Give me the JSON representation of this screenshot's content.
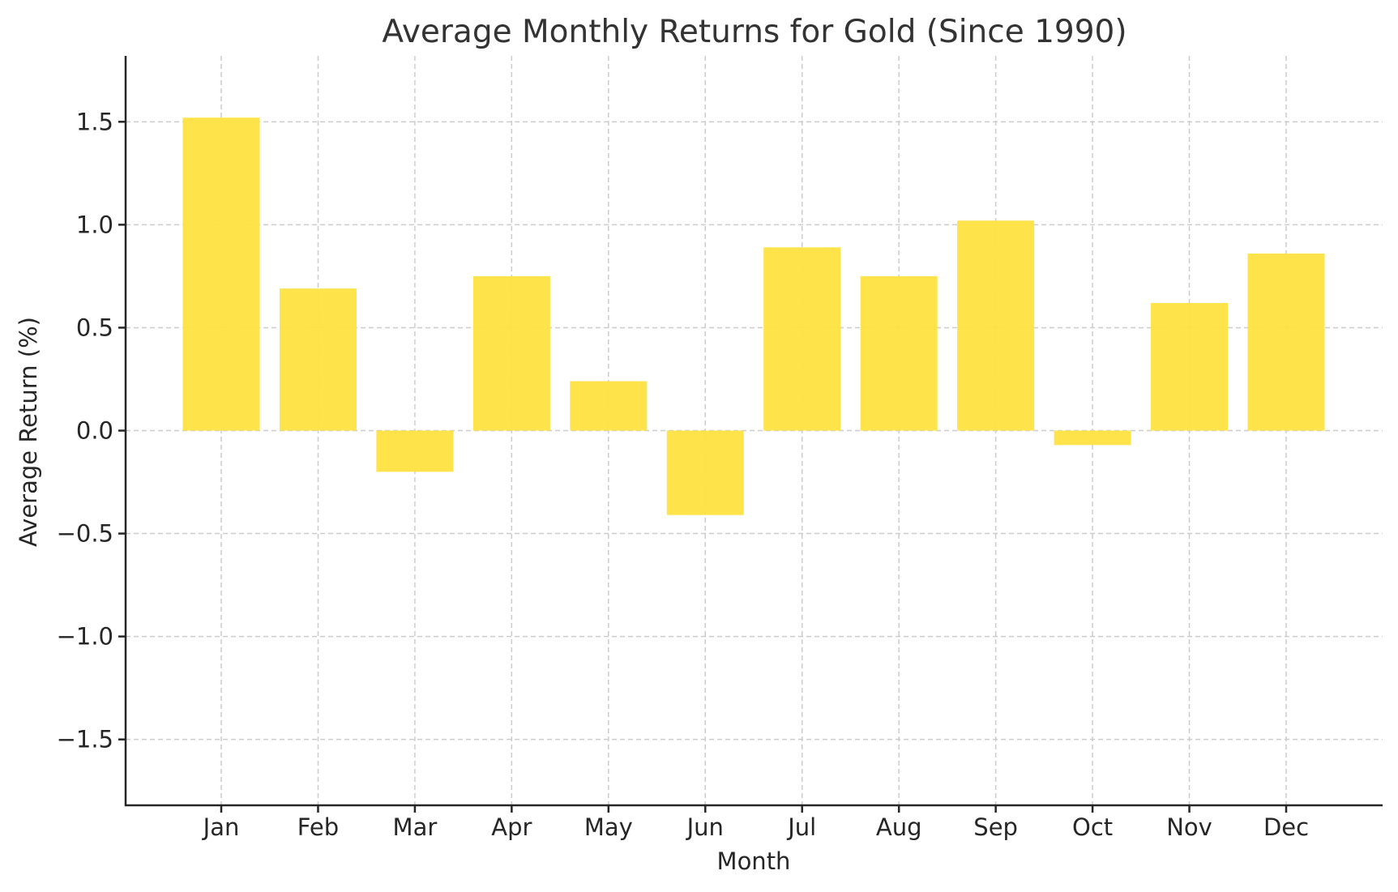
{
  "chart_data": {
    "type": "bar",
    "title": "Average Monthly Returns for Gold (Since 1990)",
    "xlabel": "Month",
    "ylabel": "Average Return (%)",
    "categories": [
      "Jan",
      "Feb",
      "Mar",
      "Apr",
      "May",
      "Jun",
      "Jul",
      "Aug",
      "Sep",
      "Oct",
      "Nov",
      "Dec"
    ],
    "values": [
      1.52,
      0.69,
      -0.2,
      0.75,
      0.24,
      -0.41,
      0.89,
      0.75,
      1.02,
      -0.07,
      0.62,
      0.86
    ],
    "ylim": [
      -1.82,
      1.82
    ],
    "yticks": [
      -1.5,
      -1.0,
      -0.5,
      0.0,
      0.5,
      1.0,
      1.5
    ],
    "ytick_labels": [
      "−1.5",
      "−1.0",
      "−0.5",
      "0.0",
      "0.5",
      "1.0",
      "1.5"
    ],
    "grid": true,
    "legend": null,
    "colors": {
      "bar": "#FFE140",
      "grid": "#cccccc",
      "axis": "#262626",
      "title": "#333333"
    }
  }
}
